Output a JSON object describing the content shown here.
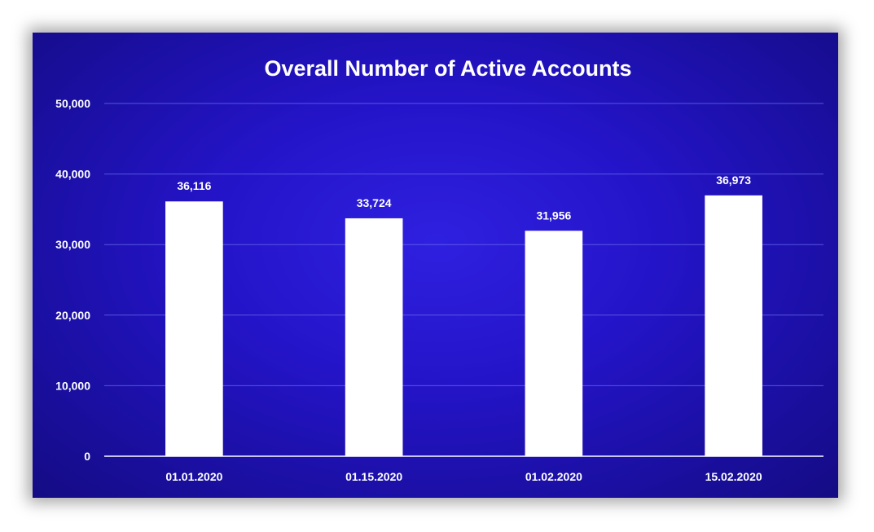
{
  "chart_data": {
    "type": "bar",
    "title": "Overall Number of Active Accounts",
    "xlabel": "",
    "ylabel": "",
    "categories": [
      "01.01.2020",
      "01.15.2020",
      "01.02.2020",
      "15.02.2020"
    ],
    "values": [
      36116,
      33724,
      31956,
      36973
    ],
    "value_labels": [
      "36,116",
      "33,724",
      "31,956",
      "36,973"
    ],
    "ylim": [
      0,
      50000
    ],
    "yticks": [
      0,
      10000,
      20000,
      30000,
      40000,
      50000
    ],
    "ytick_labels": [
      "0",
      "10,000",
      "20,000",
      "30,000",
      "40,000",
      "50,000"
    ],
    "grid": true,
    "legend": "none",
    "colors": {
      "bar": "#ffffff",
      "background": "#2414c8",
      "text": "#ffffff"
    }
  }
}
